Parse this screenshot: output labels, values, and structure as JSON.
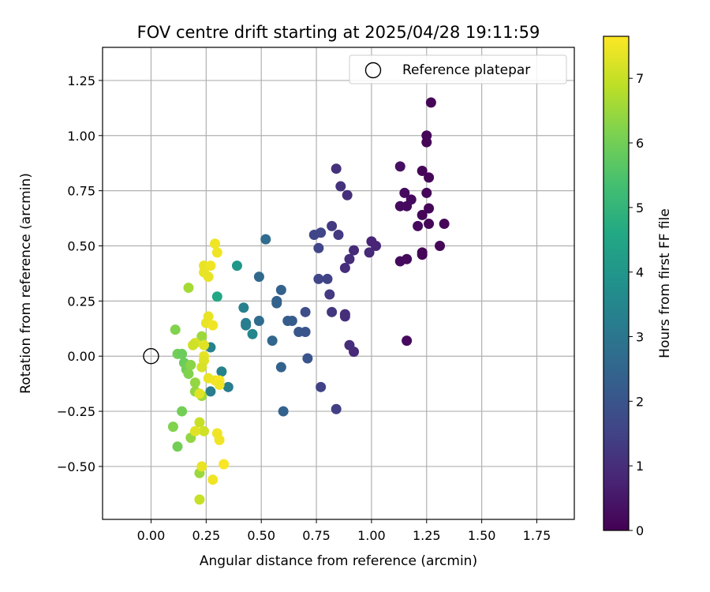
{
  "chart_data": {
    "type": "scatter",
    "title": "FOV centre drift starting at 2025/04/28 19:11:59",
    "xlabel": "Angular distance from reference (arcmin)",
    "ylabel": "Rotation from reference (arcmin)",
    "xlim": [
      -0.22,
      1.92
    ],
    "ylim": [
      -0.74,
      1.4
    ],
    "xticks": [
      0.0,
      0.25,
      0.5,
      0.75,
      1.0,
      1.25,
      1.5,
      1.75
    ],
    "xtick_labels": [
      "0.00",
      "0.25",
      "0.50",
      "0.75",
      "1.00",
      "1.25",
      "1.50",
      "1.75"
    ],
    "yticks": [
      -0.5,
      -0.25,
      0.0,
      0.25,
      0.5,
      0.75,
      1.0,
      1.25
    ],
    "ytick_labels": [
      "−0.50",
      "−0.25",
      "0.00",
      "0.25",
      "0.50",
      "0.75",
      "1.00",
      "1.25"
    ],
    "grid": true,
    "legend": {
      "placement": "top-right",
      "entries": [
        {
          "label": "Reference platepar",
          "marker": "open-circle"
        }
      ]
    },
    "reference_point": {
      "x": 0.0,
      "y": 0.0,
      "name": "Reference platepar"
    },
    "colorbar": {
      "label": "Hours from first FF file",
      "colormap": "viridis",
      "range": [
        0,
        7.65
      ],
      "ticks": [
        0,
        1,
        2,
        3,
        4,
        5,
        6,
        7
      ],
      "tick_labels": [
        "0",
        "1",
        "2",
        "3",
        "4",
        "5",
        "6",
        "7"
      ]
    },
    "points": [
      {
        "x": 1.27,
        "y": 1.15,
        "c": 0.1
      },
      {
        "x": 1.25,
        "y": 1.0,
        "c": 0.1
      },
      {
        "x": 1.25,
        "y": 0.97,
        "c": 0.1
      },
      {
        "x": 1.13,
        "y": 0.86,
        "c": 0.3
      },
      {
        "x": 1.23,
        "y": 0.84,
        "c": 0.1
      },
      {
        "x": 1.26,
        "y": 0.81,
        "c": 0.1
      },
      {
        "x": 1.15,
        "y": 0.74,
        "c": 0.2
      },
      {
        "x": 1.18,
        "y": 0.71,
        "c": 0.2
      },
      {
        "x": 1.25,
        "y": 0.74,
        "c": 0.1
      },
      {
        "x": 1.13,
        "y": 0.68,
        "c": 0.2
      },
      {
        "x": 1.16,
        "y": 0.68,
        "c": 0.2
      },
      {
        "x": 1.26,
        "y": 0.67,
        "c": 0.1
      },
      {
        "x": 1.23,
        "y": 0.64,
        "c": 0.1
      },
      {
        "x": 1.21,
        "y": 0.59,
        "c": 0.2
      },
      {
        "x": 1.26,
        "y": 0.6,
        "c": 0.1
      },
      {
        "x": 1.33,
        "y": 0.6,
        "c": 0.1
      },
      {
        "x": 1.31,
        "y": 0.5,
        "c": 0.1
      },
      {
        "x": 1.23,
        "y": 0.47,
        "c": 0.1
      },
      {
        "x": 1.23,
        "y": 0.46,
        "c": 0.1
      },
      {
        "x": 1.13,
        "y": 0.43,
        "c": 0.2
      },
      {
        "x": 1.16,
        "y": 0.44,
        "c": 0.2
      },
      {
        "x": 1.16,
        "y": 0.07,
        "c": 0.2
      },
      {
        "x": 0.84,
        "y": 0.85,
        "c": 1.1
      },
      {
        "x": 0.86,
        "y": 0.77,
        "c": 1.1
      },
      {
        "x": 0.89,
        "y": 0.73,
        "c": 1.0
      },
      {
        "x": 0.82,
        "y": 0.59,
        "c": 1.3
      },
      {
        "x": 0.74,
        "y": 0.55,
        "c": 1.6
      },
      {
        "x": 0.77,
        "y": 0.56,
        "c": 1.6
      },
      {
        "x": 0.85,
        "y": 0.55,
        "c": 1.3
      },
      {
        "x": 1.0,
        "y": 0.52,
        "c": 0.8
      },
      {
        "x": 1.02,
        "y": 0.5,
        "c": 0.8
      },
      {
        "x": 0.92,
        "y": 0.48,
        "c": 0.9
      },
      {
        "x": 0.99,
        "y": 0.47,
        "c": 0.9
      },
      {
        "x": 0.76,
        "y": 0.49,
        "c": 1.6
      },
      {
        "x": 0.9,
        "y": 0.44,
        "c": 1.0
      },
      {
        "x": 0.88,
        "y": 0.4,
        "c": 1.0
      },
      {
        "x": 0.76,
        "y": 0.35,
        "c": 1.6
      },
      {
        "x": 0.8,
        "y": 0.35,
        "c": 1.5
      },
      {
        "x": 0.81,
        "y": 0.28,
        "c": 1.3
      },
      {
        "x": 0.82,
        "y": 0.2,
        "c": 1.2
      },
      {
        "x": 0.88,
        "y": 0.19,
        "c": 1.0
      },
      {
        "x": 0.88,
        "y": 0.18,
        "c": 1.0
      },
      {
        "x": 0.9,
        "y": 0.05,
        "c": 1.0
      },
      {
        "x": 0.92,
        "y": 0.02,
        "c": 0.9
      },
      {
        "x": 0.77,
        "y": -0.14,
        "c": 1.5
      },
      {
        "x": 0.84,
        "y": -0.24,
        "c": 1.4
      },
      {
        "x": 0.7,
        "y": 0.2,
        "c": 1.8
      },
      {
        "x": 0.52,
        "y": 0.53,
        "c": 2.7
      },
      {
        "x": 0.49,
        "y": 0.36,
        "c": 2.6
      },
      {
        "x": 0.59,
        "y": 0.3,
        "c": 2.4
      },
      {
        "x": 0.57,
        "y": 0.25,
        "c": 2.4
      },
      {
        "x": 0.57,
        "y": 0.24,
        "c": 2.4
      },
      {
        "x": 0.62,
        "y": 0.16,
        "c": 2.2
      },
      {
        "x": 0.64,
        "y": 0.16,
        "c": 2.2
      },
      {
        "x": 0.67,
        "y": 0.11,
        "c": 2.1
      },
      {
        "x": 0.7,
        "y": 0.11,
        "c": 2.0
      },
      {
        "x": 0.55,
        "y": 0.07,
        "c": 2.5
      },
      {
        "x": 0.49,
        "y": 0.16,
        "c": 2.7
      },
      {
        "x": 0.71,
        "y": -0.01,
        "c": 2.0
      },
      {
        "x": 0.59,
        "y": -0.05,
        "c": 2.4
      },
      {
        "x": 0.6,
        "y": -0.25,
        "c": 2.4
      },
      {
        "x": 0.39,
        "y": 0.41,
        "c": 4.0
      },
      {
        "x": 0.42,
        "y": 0.22,
        "c": 3.3
      },
      {
        "x": 0.43,
        "y": 0.15,
        "c": 3.2
      },
      {
        "x": 0.43,
        "y": 0.14,
        "c": 3.2
      },
      {
        "x": 0.46,
        "y": 0.1,
        "c": 3.5
      },
      {
        "x": 0.35,
        "y": -0.14,
        "c": 3.2
      },
      {
        "x": 0.32,
        "y": -0.07,
        "c": 3.4
      },
      {
        "x": 0.27,
        "y": 0.04,
        "c": 3.4
      },
      {
        "x": 0.27,
        "y": -0.16,
        "c": 3.2
      },
      {
        "x": 0.3,
        "y": 0.27,
        "c": 4.6
      },
      {
        "x": 0.17,
        "y": 0.31,
        "c": 6.6
      },
      {
        "x": 0.11,
        "y": 0.12,
        "c": 6.2
      },
      {
        "x": 0.12,
        "y": 0.01,
        "c": 6.0
      },
      {
        "x": 0.14,
        "y": 0.01,
        "c": 5.9
      },
      {
        "x": 0.15,
        "y": -0.03,
        "c": 5.9
      },
      {
        "x": 0.16,
        "y": -0.06,
        "c": 6.0
      },
      {
        "x": 0.17,
        "y": -0.08,
        "c": 6.2
      },
      {
        "x": 0.18,
        "y": -0.04,
        "c": 6.3
      },
      {
        "x": 0.2,
        "y": -0.16,
        "c": 6.4
      },
      {
        "x": 0.23,
        "y": 0.09,
        "c": 6.5
      },
      {
        "x": 0.23,
        "y": -0.18,
        "c": 6.5
      },
      {
        "x": 0.14,
        "y": -0.25,
        "c": 6.0
      },
      {
        "x": 0.1,
        "y": -0.32,
        "c": 6.2
      },
      {
        "x": 0.18,
        "y": -0.37,
        "c": 6.4
      },
      {
        "x": 0.12,
        "y": -0.41,
        "c": 6.0
      },
      {
        "x": 0.22,
        "y": -0.53,
        "c": 6.5
      },
      {
        "x": 0.2,
        "y": -0.12,
        "c": 6.4
      },
      {
        "x": 0.29,
        "y": 0.51,
        "c": 7.5
      },
      {
        "x": 0.3,
        "y": 0.47,
        "c": 7.5
      },
      {
        "x": 0.24,
        "y": 0.41,
        "c": 7.4
      },
      {
        "x": 0.27,
        "y": 0.41,
        "c": 7.5
      },
      {
        "x": 0.24,
        "y": 0.38,
        "c": 7.4
      },
      {
        "x": 0.26,
        "y": 0.36,
        "c": 7.4
      },
      {
        "x": 0.26,
        "y": 0.18,
        "c": 7.4
      },
      {
        "x": 0.25,
        "y": 0.15,
        "c": 7.4
      },
      {
        "x": 0.28,
        "y": 0.14,
        "c": 7.5
      },
      {
        "x": 0.2,
        "y": 0.06,
        "c": 7.2
      },
      {
        "x": 0.19,
        "y": 0.05,
        "c": 7.1
      },
      {
        "x": 0.24,
        "y": 0.05,
        "c": 7.3
      },
      {
        "x": 0.24,
        "y": 0.0,
        "c": 7.4
      },
      {
        "x": 0.24,
        "y": -0.02,
        "c": 7.3
      },
      {
        "x": 0.23,
        "y": -0.05,
        "c": 7.2
      },
      {
        "x": 0.26,
        "y": -0.1,
        "c": 7.4
      },
      {
        "x": 0.29,
        "y": -0.11,
        "c": 7.5
      },
      {
        "x": 0.31,
        "y": -0.11,
        "c": 7.6
      },
      {
        "x": 0.31,
        "y": -0.13,
        "c": 7.5
      },
      {
        "x": 0.22,
        "y": -0.17,
        "c": 7.3
      },
      {
        "x": 0.22,
        "y": -0.3,
        "c": 7.0
      },
      {
        "x": 0.24,
        "y": -0.34,
        "c": 7.1
      },
      {
        "x": 0.2,
        "y": -0.34,
        "c": 7.3
      },
      {
        "x": 0.3,
        "y": -0.35,
        "c": 7.5
      },
      {
        "x": 0.31,
        "y": -0.38,
        "c": 7.5
      },
      {
        "x": 0.33,
        "y": -0.49,
        "c": 7.6
      },
      {
        "x": 0.23,
        "y": -0.5,
        "c": 7.4
      },
      {
        "x": 0.28,
        "y": -0.56,
        "c": 7.5
      },
      {
        "x": 0.22,
        "y": -0.65,
        "c": 7.0
      }
    ]
  }
}
